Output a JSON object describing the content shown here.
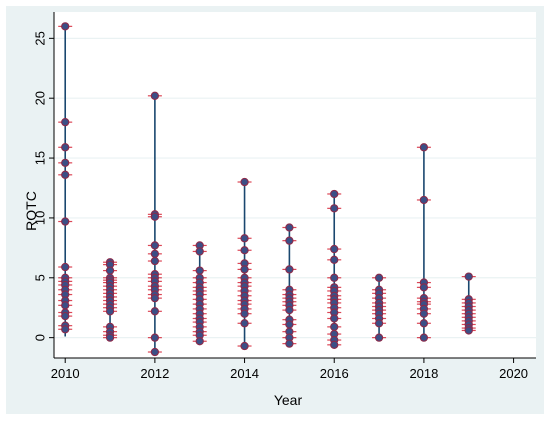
{
  "chart_data": {
    "type": "scatter",
    "title": "",
    "xlabel": "Year",
    "ylabel": "ROTC",
    "xlim": [
      2009.75,
      2020.5
    ],
    "ylim": [
      -1.7,
      27.2
    ],
    "xticks": [
      "2010",
      "2012",
      "2014",
      "2016",
      "2018",
      "2020"
    ],
    "yticks": [
      "0",
      "5",
      "10",
      "15",
      "20",
      "25"
    ],
    "grid": true,
    "legend": "none",
    "series": [
      {
        "style": "spike",
        "x": [
          2010,
          2011,
          2012,
          2013,
          2014,
          2015,
          2016,
          2017,
          2018,
          2019
        ],
        "low": [
          0.1,
          0.0,
          -1.2,
          -0.3,
          -0.7,
          -0.5,
          -0.6,
          0.0,
          0.0,
          0.6
        ],
        "high": [
          26.0,
          6.3,
          20.2,
          7.7,
          13.0,
          9.2,
          12.0,
          5.0,
          15.9,
          5.1
        ]
      },
      {
        "style": "markers",
        "points": [
          [
            2010,
            26.0
          ],
          [
            2010,
            18.0
          ],
          [
            2010,
            15.9
          ],
          [
            2010,
            14.6
          ],
          [
            2010,
            13.6
          ],
          [
            2010,
            9.7
          ],
          [
            2010,
            5.9
          ],
          [
            2010,
            5.0
          ],
          [
            2010,
            4.7
          ],
          [
            2010,
            4.4
          ],
          [
            2010,
            4.0
          ],
          [
            2010,
            3.6
          ],
          [
            2010,
            3.1
          ],
          [
            2010,
            2.7
          ],
          [
            2010,
            2.1
          ],
          [
            2010,
            1.8
          ],
          [
            2010,
            1.0
          ],
          [
            2010,
            0.7
          ],
          [
            2011,
            6.3
          ],
          [
            2011,
            6.1
          ],
          [
            2011,
            5.6
          ],
          [
            2011,
            5.0
          ],
          [
            2011,
            4.8
          ],
          [
            2011,
            4.6
          ],
          [
            2011,
            4.3
          ],
          [
            2011,
            4.0
          ],
          [
            2011,
            3.7
          ],
          [
            2011,
            3.4
          ],
          [
            2011,
            3.1
          ],
          [
            2011,
            2.8
          ],
          [
            2011,
            2.5
          ],
          [
            2011,
            2.2
          ],
          [
            2011,
            0.9
          ],
          [
            2011,
            0.5
          ],
          [
            2011,
            0.2
          ],
          [
            2011,
            0.0
          ],
          [
            2012,
            20.2
          ],
          [
            2012,
            10.3
          ],
          [
            2012,
            10.1
          ],
          [
            2012,
            7.7
          ],
          [
            2012,
            7.0
          ],
          [
            2012,
            6.4
          ],
          [
            2012,
            5.3
          ],
          [
            2012,
            5.0
          ],
          [
            2012,
            4.7
          ],
          [
            2012,
            4.3
          ],
          [
            2012,
            4.0
          ],
          [
            2012,
            3.6
          ],
          [
            2012,
            3.3
          ],
          [
            2012,
            2.2
          ],
          [
            2012,
            0.0
          ],
          [
            2012,
            -1.2
          ],
          [
            2013,
            7.7
          ],
          [
            2013,
            7.2
          ],
          [
            2013,
            5.6
          ],
          [
            2013,
            5.0
          ],
          [
            2013,
            4.6
          ],
          [
            2013,
            4.2
          ],
          [
            2013,
            3.9
          ],
          [
            2013,
            3.6
          ],
          [
            2013,
            3.2
          ],
          [
            2013,
            2.8
          ],
          [
            2013,
            2.4
          ],
          [
            2013,
            2.0
          ],
          [
            2013,
            1.6
          ],
          [
            2013,
            1.3
          ],
          [
            2013,
            0.9
          ],
          [
            2013,
            0.5
          ],
          [
            2013,
            0.2
          ],
          [
            2013,
            -0.3
          ],
          [
            2014,
            13.0
          ],
          [
            2014,
            8.3
          ],
          [
            2014,
            7.3
          ],
          [
            2014,
            6.2
          ],
          [
            2014,
            5.7
          ],
          [
            2014,
            5.0
          ],
          [
            2014,
            4.6
          ],
          [
            2014,
            4.3
          ],
          [
            2014,
            3.9
          ],
          [
            2014,
            3.5
          ],
          [
            2014,
            3.1
          ],
          [
            2014,
            2.8
          ],
          [
            2014,
            2.4
          ],
          [
            2014,
            2.0
          ],
          [
            2014,
            1.2
          ],
          [
            2014,
            -0.7
          ],
          [
            2015,
            9.2
          ],
          [
            2015,
            8.1
          ],
          [
            2015,
            5.7
          ],
          [
            2015,
            4.0
          ],
          [
            2015,
            3.6
          ],
          [
            2015,
            3.3
          ],
          [
            2015,
            3.0
          ],
          [
            2015,
            2.7
          ],
          [
            2015,
            2.3
          ],
          [
            2015,
            1.5
          ],
          [
            2015,
            1.1
          ],
          [
            2015,
            0.5
          ],
          [
            2015,
            0.0
          ],
          [
            2015,
            -0.5
          ],
          [
            2016,
            12.0
          ],
          [
            2016,
            10.8
          ],
          [
            2016,
            7.4
          ],
          [
            2016,
            6.5
          ],
          [
            2016,
            5.0
          ],
          [
            2016,
            4.2
          ],
          [
            2016,
            3.9
          ],
          [
            2016,
            3.5
          ],
          [
            2016,
            3.2
          ],
          [
            2016,
            2.9
          ],
          [
            2016,
            2.5
          ],
          [
            2016,
            2.1
          ],
          [
            2016,
            1.6
          ],
          [
            2016,
            0.9
          ],
          [
            2016,
            0.3
          ],
          [
            2016,
            -0.2
          ],
          [
            2016,
            -0.6
          ],
          [
            2017,
            5.0
          ],
          [
            2017,
            4.0
          ],
          [
            2017,
            3.7
          ],
          [
            2017,
            3.3
          ],
          [
            2017,
            2.9
          ],
          [
            2017,
            2.6
          ],
          [
            2017,
            2.3
          ],
          [
            2017,
            2.0
          ],
          [
            2017,
            1.6
          ],
          [
            2017,
            1.2
          ],
          [
            2017,
            0.0
          ],
          [
            2018,
            15.9
          ],
          [
            2018,
            11.5
          ],
          [
            2018,
            4.6
          ],
          [
            2018,
            4.2
          ],
          [
            2018,
            3.3
          ],
          [
            2018,
            3.0
          ],
          [
            2018,
            2.8
          ],
          [
            2018,
            2.4
          ],
          [
            2018,
            2.0
          ],
          [
            2018,
            1.2
          ],
          [
            2018,
            0.0
          ],
          [
            2019,
            5.1
          ],
          [
            2019,
            3.2
          ],
          [
            2019,
            2.9
          ],
          [
            2019,
            2.6
          ],
          [
            2019,
            2.3
          ],
          [
            2019,
            2.0
          ],
          [
            2019,
            1.7
          ],
          [
            2019,
            1.4
          ],
          [
            2019,
            1.1
          ],
          [
            2019,
            0.8
          ],
          [
            2019,
            0.6
          ]
        ]
      }
    ],
    "colors": {
      "spike": "#1a476f",
      "marker_fill": "#3b4f86",
      "marker_edge": "#8b2a4a",
      "cap": "#d62839",
      "grid": "#eaf2f3",
      "plot_bg": "#ffffff",
      "outer_bg": "#eaf2f3"
    }
  }
}
